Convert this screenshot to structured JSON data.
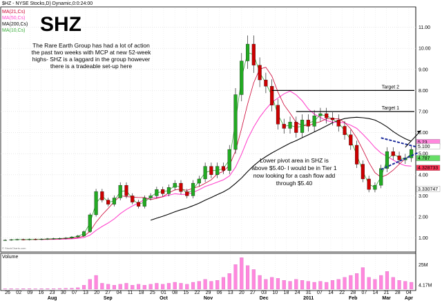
{
  "chart_data": {
    "type": "candlestick",
    "header": "$HZ - NYSE Stocks,D) Dynamic,0:0:24:00",
    "title": "SHZ",
    "legend": [
      {
        "label": "MA(21,Cs)",
        "color": "#cc0033"
      },
      {
        "label": "MA(50,Cs)",
        "color": "#ff44cc"
      },
      {
        "label": "MA(200,Cs)",
        "color": "#000000"
      },
      {
        "label": "MA(10,Cs)",
        "color": "#33aa33"
      }
    ],
    "annotation_top": [
      "The Rare Earth Group has had a lot of action",
      "the past two weeks with MCP at new 52-week",
      "highs- SHZ is a laggard in the group however",
      "there is a tradeable set-up here"
    ],
    "annotation_mid": [
      "Lower pivot area in SHZ is",
      "above $5.40- I would be in Tier 1",
      "now looking for a cash flow add",
      "through $5.40"
    ],
    "targets": [
      {
        "label": "Target 2",
        "value": 8.0
      },
      {
        "label": "Target 1",
        "value": 7.0
      }
    ],
    "y_ticks": [
      "11.00",
      "10.00",
      "9.00",
      "8.00",
      "7.00",
      "6.00",
      "5.00",
      "4.00",
      "3.00",
      "2.00",
      "1.00"
    ],
    "y_tick_values": [
      11,
      10,
      9,
      8,
      7,
      6,
      5,
      4,
      3,
      2,
      1
    ],
    "ylim": [
      0.4,
      11.9
    ],
    "price_tags": [
      {
        "label": "5.23",
        "value": 5.55,
        "color": "#ff88dd"
      },
      {
        "label": "5.100",
        "value": 5.35,
        "color": "#ffffff"
      },
      {
        "label": "4.787",
        "value": 4.79,
        "color": "#66dd66"
      },
      {
        "label": "4.328733",
        "value": 4.33,
        "color": "#ff3355"
      },
      {
        "label": "3.330747",
        "value": 3.33,
        "color": "#ffffff"
      }
    ],
    "volume_label": "Volume",
    "volume_ticks": [
      "25M",
      "4.17M"
    ],
    "volume_tick_values": [
      25,
      4.17
    ],
    "volume_max": 35,
    "x_date_labels": [
      "26",
      "02",
      "09",
      "16",
      "23",
      "30",
      "07",
      "13",
      "20",
      "27",
      "04",
      "11",
      "18",
      "25",
      "01",
      "08",
      "15",
      "22",
      "29",
      "06",
      "13",
      "20",
      "27",
      "03",
      "10",
      "18",
      "24",
      "31",
      "07",
      "14",
      "22",
      "28",
      "07",
      "14",
      "21",
      "28",
      "04"
    ],
    "month_labels": [
      "Aug",
      "Sep",
      "Oct",
      "Nov",
      "Dec",
      "2011",
      "Feb",
      "Mar",
      "Apr"
    ],
    "month_label_positions": [
      4,
      9,
      14,
      18,
      23,
      27,
      31,
      34,
      36
    ],
    "watermark": "© StockCharts.com",
    "closes": [
      0.9,
      0.92,
      0.93,
      0.92,
      0.94,
      0.93,
      0.95,
      0.96,
      0.97,
      0.98,
      1.0,
      1.05,
      1.1,
      1.3,
      2.1,
      3.2,
      2.8,
      2.6,
      2.9,
      3.5,
      3.0,
      2.7,
      2.5,
      2.9,
      3.0,
      3.3,
      3.1,
      3.4,
      3.6,
      3.2,
      3.0,
      3.6,
      3.8,
      4.4,
      4.0,
      4.4,
      4.2,
      5.2,
      7.8,
      9.4,
      10.2,
      9.2,
      8.5,
      8.2,
      7.3,
      6.4,
      6.2,
      6.5,
      6.0,
      6.6,
      6.3,
      6.8,
      6.9,
      6.7,
      6.6,
      6.3,
      5.9,
      5.4,
      4.5,
      3.8,
      3.3,
      3.5,
      4.3,
      5.1,
      4.9,
      4.7,
      4.8,
      5.2
    ],
    "volumes": [
      0.4,
      0.5,
      0.4,
      0.6,
      0.5,
      0.4,
      0.5,
      0.6,
      0.5,
      0.7,
      0.8,
      1.0,
      1.5,
      4,
      10,
      14,
      6,
      5,
      4,
      5,
      6,
      4,
      5,
      4,
      5,
      6,
      5,
      6,
      7,
      6,
      5,
      7,
      8,
      10,
      8,
      9,
      12,
      16,
      25,
      32,
      24,
      20,
      14,
      10,
      12,
      11,
      9,
      8,
      10,
      9,
      8,
      7,
      8,
      7,
      9,
      10,
      12,
      14,
      16,
      22,
      12,
      10,
      14,
      18,
      12,
      9,
      8,
      7
    ]
  }
}
